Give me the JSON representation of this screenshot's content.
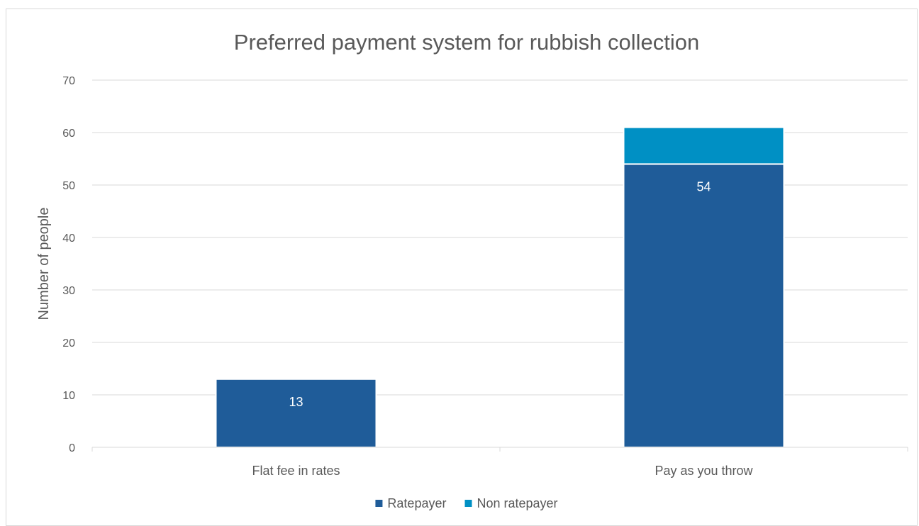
{
  "chart_data": {
    "type": "bar",
    "stacked": true,
    "title": "Preferred payment system for rubbish collection",
    "xlabel": "",
    "ylabel": "Number of people",
    "categories": [
      "Flat fee in rates",
      "Pay as you throw"
    ],
    "series": [
      {
        "name": "Ratepayer",
        "values": [
          13,
          54
        ],
        "color": "#1f5c99",
        "data_labels": [
          "13",
          "54"
        ]
      },
      {
        "name": "Non ratepayer",
        "values": [
          0,
          7
        ],
        "color": "#0090c4",
        "data_labels": [
          "",
          ""
        ]
      }
    ],
    "ylim": [
      0,
      70
    ],
    "yticks": [
      0,
      10,
      20,
      30,
      40,
      50,
      60,
      70
    ],
    "grid": true,
    "legend_position": "bottom"
  }
}
